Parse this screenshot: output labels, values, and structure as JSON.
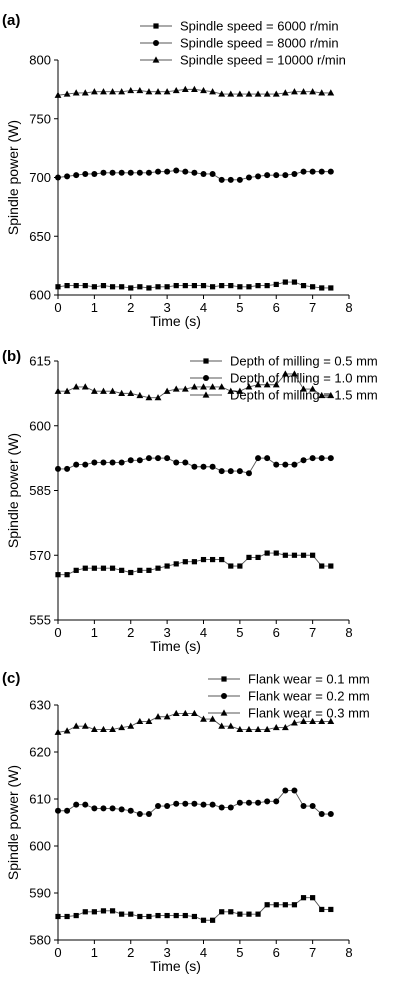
{
  "chart_data": [
    {
      "panel_label": "(a)",
      "type": "line",
      "xlabel": "Time (s)",
      "ylabel": "Spindle power (W)",
      "xlim": [
        0,
        8
      ],
      "ylim": [
        600,
        800
      ],
      "xticks": [
        0,
        1,
        2,
        3,
        4,
        5,
        6,
        7,
        8
      ],
      "yticks": [
        600,
        650,
        700,
        750,
        800
      ],
      "grid": false,
      "legend_position": "top-right",
      "x": [
        0,
        0.25,
        0.5,
        0.75,
        1,
        1.25,
        1.5,
        1.75,
        2,
        2.25,
        2.5,
        2.75,
        3,
        3.25,
        3.5,
        3.75,
        4,
        4.25,
        4.5,
        4.75,
        5,
        5.25,
        5.5,
        5.75,
        6,
        6.25,
        6.5,
        6.75,
        7,
        7.25,
        7.5
      ],
      "series": [
        {
          "name": "Spindle speed = 6000 r/min",
          "marker": "square",
          "values": [
            607,
            608,
            608,
            608,
            607,
            608,
            607,
            607,
            606,
            607,
            606,
            607,
            607,
            608,
            608,
            608,
            608,
            607,
            608,
            608,
            607,
            607,
            608,
            608,
            609,
            611,
            611,
            608,
            607,
            606,
            606
          ]
        },
        {
          "name": "Spindle speed = 8000 r/min",
          "marker": "circle",
          "values": [
            700,
            701,
            702,
            703,
            703,
            704,
            704,
            704,
            704,
            704,
            704,
            705,
            705,
            706,
            705,
            704,
            703,
            703,
            698,
            698,
            698,
            700,
            701,
            702,
            702,
            702,
            703,
            705,
            705,
            705,
            705
          ]
        },
        {
          "name": "Spindle speed = 10000 r/min",
          "marker": "triangle",
          "values": [
            770,
            771,
            772,
            772,
            773,
            773,
            773,
            773,
            774,
            774,
            773,
            773,
            773,
            774,
            775,
            775,
            774,
            773,
            771,
            771,
            771,
            771,
            771,
            771,
            771,
            772,
            773,
            773,
            773,
            772,
            772
          ]
        }
      ]
    },
    {
      "panel_label": "(b)",
      "type": "line",
      "xlabel": "Time (s)",
      "ylabel": "Spindle power (W)",
      "xlim": [
        0,
        8
      ],
      "ylim": [
        555,
        615
      ],
      "xticks": [
        0,
        1,
        2,
        3,
        4,
        5,
        6,
        7,
        8
      ],
      "yticks": [
        555,
        570,
        585,
        600,
        615
      ],
      "grid": false,
      "legend_position": "top-right",
      "x": [
        0,
        0.25,
        0.5,
        0.75,
        1,
        1.25,
        1.5,
        1.75,
        2,
        2.25,
        2.5,
        2.75,
        3,
        3.25,
        3.5,
        3.75,
        4,
        4.25,
        4.5,
        4.75,
        5,
        5.25,
        5.5,
        5.75,
        6,
        6.25,
        6.5,
        6.75,
        7,
        7.25,
        7.5
      ],
      "series": [
        {
          "name": "Depth of milling = 0.5 mm",
          "marker": "square",
          "values": [
            565.5,
            565.5,
            566.5,
            567,
            567,
            567,
            567,
            566.5,
            566,
            566.5,
            566.5,
            567,
            567.5,
            568,
            568.5,
            568.5,
            569,
            569,
            569,
            567.5,
            567.5,
            569.5,
            569.5,
            570.5,
            570.5,
            570,
            570,
            570,
            570,
            567.5,
            567.5
          ]
        },
        {
          "name": "Depth of milling = 1.0 mm",
          "marker": "circle",
          "values": [
            590,
            590,
            591,
            591,
            591.5,
            591.5,
            591.5,
            591.5,
            592,
            592,
            592.5,
            592.5,
            592.5,
            591.5,
            591.5,
            590.5,
            590.5,
            590.5,
            589.5,
            589.5,
            589.5,
            589,
            592.5,
            592.5,
            591,
            591,
            591,
            592,
            592.5,
            592.5,
            592.5
          ]
        },
        {
          "name": "Depth of milling = 1.5 mm",
          "marker": "triangle",
          "values": [
            608,
            608,
            609,
            609,
            608,
            608,
            608,
            607.5,
            607.5,
            607,
            606.5,
            606.5,
            608,
            608.5,
            608.5,
            609,
            609,
            609,
            609,
            608,
            608,
            609,
            609.5,
            609.5,
            609.5,
            612,
            612,
            608.5,
            608.5,
            607,
            607
          ]
        }
      ]
    },
    {
      "panel_label": "(c)",
      "type": "line",
      "xlabel": "Time (s)",
      "ylabel": "Spindle power (W)",
      "xlim": [
        0,
        8
      ],
      "ylim": [
        580,
        630
      ],
      "xticks": [
        0,
        1,
        2,
        3,
        4,
        5,
        6,
        7,
        8
      ],
      "yticks": [
        580,
        590,
        600,
        610,
        620,
        630
      ],
      "grid": false,
      "legend_position": "top-right",
      "x": [
        0,
        0.25,
        0.5,
        0.75,
        1,
        1.25,
        1.5,
        1.75,
        2,
        2.25,
        2.5,
        2.75,
        3,
        3.25,
        3.5,
        3.75,
        4,
        4.25,
        4.5,
        4.75,
        5,
        5.25,
        5.5,
        5.75,
        6,
        6.25,
        6.5,
        6.75,
        7,
        7.25,
        7.5
      ],
      "series": [
        {
          "name": "Flank wear = 0.1 mm",
          "marker": "square",
          "values": [
            585,
            585,
            585.2,
            586,
            586,
            586.2,
            586.2,
            585.5,
            585.5,
            585,
            585,
            585.2,
            585.2,
            585.2,
            585.2,
            585,
            584.2,
            584.2,
            586,
            586,
            585.5,
            585.5,
            585.5,
            587.5,
            587.5,
            587.5,
            587.5,
            589,
            589,
            586.5,
            586.5
          ]
        },
        {
          "name": "Flank wear = 0.2 mm",
          "marker": "circle",
          "values": [
            607.5,
            607.5,
            608.8,
            608.8,
            608,
            608,
            608,
            607.8,
            607.5,
            606.8,
            606.8,
            608.5,
            608.5,
            609,
            609,
            609,
            608.8,
            608.8,
            608.2,
            608.2,
            609.2,
            609.2,
            609.2,
            609.5,
            609.5,
            611.8,
            611.8,
            608.5,
            608.5,
            606.8,
            606.8
          ]
        },
        {
          "name": "Flank wear = 0.3 mm",
          "marker": "triangle",
          "values": [
            624.2,
            624.5,
            625.5,
            625.5,
            624.8,
            624.8,
            624.8,
            625.2,
            625.5,
            626.5,
            626.5,
            627.5,
            627.5,
            628.2,
            628.2,
            628.2,
            627,
            627,
            625.5,
            625.5,
            624.8,
            624.8,
            624.8,
            624.8,
            625.2,
            625.2,
            626.2,
            626.5,
            626.5,
            626.5,
            626.5
          ]
        }
      ]
    }
  ]
}
